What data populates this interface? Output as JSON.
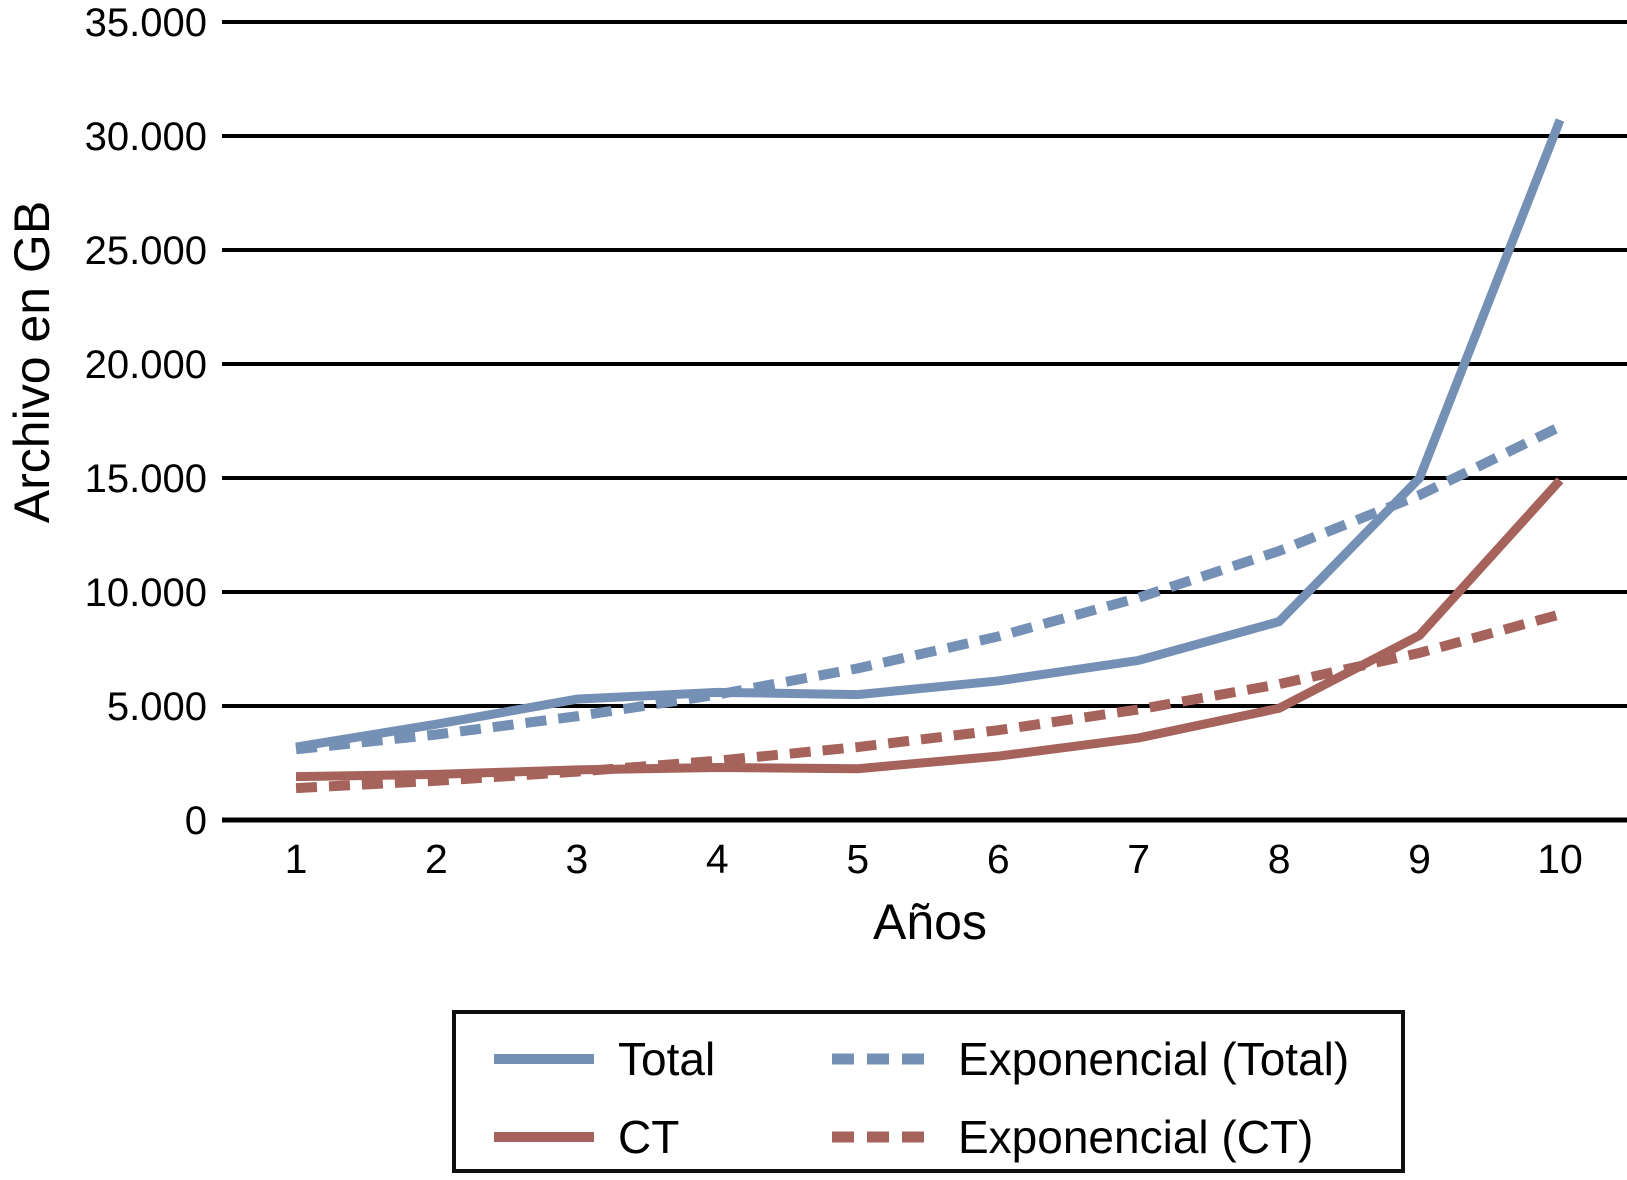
{
  "chart_data": {
    "type": "line",
    "title": "",
    "xlabel": "Años",
    "ylabel": "Archivo en GB",
    "x": [
      1,
      2,
      3,
      4,
      5,
      6,
      7,
      8,
      9,
      10
    ],
    "x_tick_labels": [
      "1",
      "2",
      "3",
      "4",
      "5",
      "6",
      "7",
      "8",
      "9",
      "10"
    ],
    "y_ticks": [
      0,
      5000,
      10000,
      15000,
      20000,
      25000,
      30000,
      35000
    ],
    "y_tick_labels": [
      "0",
      "5.000",
      "10.000",
      "15.000",
      "20.000",
      "25.000",
      "30.000",
      "35.000"
    ],
    "ylim": [
      0,
      35000
    ],
    "xlim": [
      1,
      10
    ],
    "grid": "horizontal",
    "legend_position": "bottom",
    "series": [
      {
        "name": "Total",
        "style": "solid",
        "color": "#7590b5",
        "values": [
          3200,
          4200,
          5300,
          5600,
          5500,
          6100,
          7000,
          8700,
          15000,
          30700
        ]
      },
      {
        "name": "CT",
        "style": "solid",
        "color": "#a5635c",
        "values": [
          1900,
          2000,
          2200,
          2300,
          2250,
          2800,
          3600,
          4900,
          8100,
          14900
        ]
      },
      {
        "name": "Exponencial (Total)",
        "style": "dashed",
        "color": "#7590b5",
        "values": [
          3100,
          3750,
          4550,
          5500,
          6650,
          8050,
          9750,
          11800,
          14250,
          17250
        ]
      },
      {
        "name": "Exponencial (CT)",
        "style": "dashed",
        "color": "#a5635c",
        "values": [
          1400,
          1720,
          2120,
          2600,
          3200,
          3940,
          4850,
          5960,
          7330,
          9020
        ]
      }
    ],
    "axis_color": "#000000",
    "gridline_color": "#000000"
  }
}
